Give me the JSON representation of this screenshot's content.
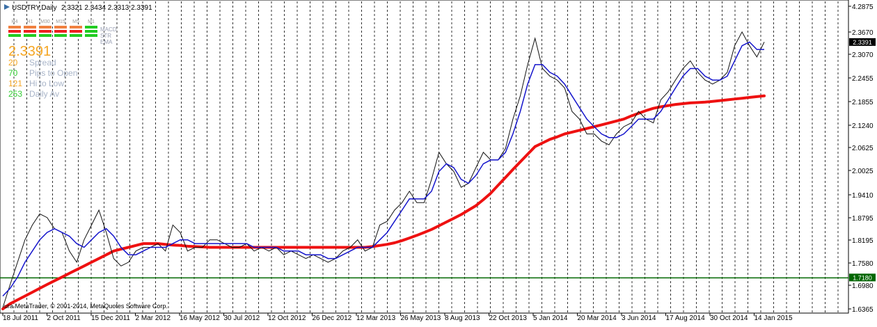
{
  "window": {
    "title": "USDTRY,Daily",
    "ohlc": "2.3321 2.3434 2.3313 2.3391",
    "copyright": "ura MetaTrader, © 2001-2014, MetaQuotes Software Corp."
  },
  "hud": {
    "timeframes": [
      "H4",
      "H1",
      "M30",
      "M15",
      "M5",
      "M1"
    ],
    "indicators": [
      "MACD",
      "STR",
      "EMA"
    ],
    "price": "2.3391",
    "stats": [
      {
        "value": "20",
        "label": "Spread",
        "color": "#f5a623"
      },
      {
        "value": "70",
        "label": "Pips to Open",
        "color": "#33cc33"
      },
      {
        "value": "121",
        "label": "Hi to Low",
        "color": "#f5a623"
      },
      {
        "value": "253",
        "label": "Daily Av",
        "color": "#33cc33"
      }
    ]
  },
  "colors": {
    "ma_long": "#ee1111",
    "ma_blue": "#1515cc",
    "ma_red_thin": "#cc0000",
    "ma_green": "#008800",
    "price_line": "#111111",
    "hline": "#006600",
    "bid_label": "#000000",
    "hline_label": "#006600",
    "up_green": "#22cc22",
    "down_red": "#ee2222",
    "mid_orange": "#f08040"
  },
  "chart_data": {
    "type": "line",
    "title": "USDTRY,Daily",
    "ylim": [
      1.6365,
      4.2875
    ],
    "y_ticks": [
      "4.2875",
      "2.3670",
      "2.3070",
      "2.2455",
      "2.1855",
      "2.1240",
      "2.0625",
      "2.0025",
      "1.9410",
      "1.8795",
      "1.8195",
      "1.7580",
      "1.6980",
      "1.6365"
    ],
    "x_ticks": [
      "18 Jul 2011",
      "2 Oct 2011",
      "15 Dec 2011",
      "2 Mar 2012",
      "16 May 2012",
      "30 Jul 2012",
      "12 Oct 2012",
      "26 Dec 2012",
      "12 Mar 2013",
      "26 May 2013",
      "8 Aug 2013",
      "22 Oct 2013",
      "5 Jan 2014",
      "20 Mar 2014",
      "3 Jun 2014",
      "17 Aug 2014",
      "30 Oct 2014",
      "14 Jan 2015"
    ],
    "current_price": {
      "value": 2.3391,
      "label": "2.3391"
    },
    "hline": {
      "value": 1.718,
      "label": "1.7180"
    },
    "series": [
      {
        "key": "price",
        "values": [
          1.64,
          1.7,
          1.76,
          1.82,
          1.86,
          1.89,
          1.88,
          1.85,
          1.84,
          1.79,
          1.76,
          1.82,
          1.86,
          1.9,
          1.84,
          1.77,
          1.75,
          1.76,
          1.79,
          1.8,
          1.8,
          1.81,
          1.79,
          1.86,
          1.84,
          1.79,
          1.8,
          1.8,
          1.82,
          1.82,
          1.81,
          1.8,
          1.8,
          1.81,
          1.79,
          1.8,
          1.79,
          1.8,
          1.78,
          1.79,
          1.78,
          1.77,
          1.78,
          1.77,
          1.76,
          1.77,
          1.79,
          1.8,
          1.82,
          1.79,
          1.8,
          1.86,
          1.87,
          1.9,
          1.92,
          1.95,
          1.92,
          1.92,
          1.98,
          2.05,
          2.02,
          2.0,
          1.96,
          1.97,
          2.01,
          2.05,
          2.03,
          2.03,
          2.06,
          2.14,
          2.2,
          2.28,
          2.35,
          2.27,
          2.25,
          2.24,
          2.22,
          2.16,
          2.14,
          2.1,
          2.1,
          2.08,
          2.07,
          2.1,
          2.12,
          2.13,
          2.16,
          2.14,
          2.13,
          2.19,
          2.21,
          2.24,
          2.27,
          2.29,
          2.26,
          2.24,
          2.23,
          2.24,
          2.26,
          2.33,
          2.37,
          2.33,
          2.3,
          2.34
        ]
      },
      {
        "key": "ma_long",
        "values": [
          1.6365,
          1.65,
          1.66,
          1.67,
          1.68,
          1.69,
          1.7,
          1.71,
          1.72,
          1.73,
          1.74,
          1.75,
          1.76,
          1.77,
          1.78,
          1.79,
          1.795,
          1.8,
          1.805,
          1.81,
          1.81,
          1.81,
          1.808,
          1.806,
          1.805,
          1.803,
          1.802,
          1.801,
          1.8,
          1.8,
          1.8,
          1.8,
          1.8,
          1.8,
          1.8,
          1.8,
          1.8,
          1.8,
          1.8,
          1.8,
          1.8,
          1.8,
          1.8,
          1.8,
          1.8,
          1.8,
          1.8,
          1.8,
          1.8,
          1.8,
          1.802,
          1.805,
          1.808,
          1.812,
          1.818,
          1.825,
          1.832,
          1.84,
          1.848,
          1.858,
          1.868,
          1.878,
          1.888,
          1.9,
          1.912,
          1.928,
          1.945,
          1.965,
          1.985,
          2.005,
          2.025,
          2.045,
          2.065,
          2.075,
          2.085,
          2.092,
          2.1,
          2.105,
          2.11,
          2.115,
          2.12,
          2.125,
          2.13,
          2.135,
          2.14,
          2.148,
          2.155,
          2.162,
          2.168,
          2.172,
          2.175,
          2.178,
          2.18,
          2.182,
          2.183,
          2.184,
          2.186,
          2.188,
          2.19,
          2.192,
          2.194,
          2.196,
          2.198,
          2.2
        ]
      },
      {
        "key": "ma_blue",
        "values": [
          1.67,
          1.69,
          1.72,
          1.76,
          1.79,
          1.82,
          1.84,
          1.85,
          1.84,
          1.83,
          1.81,
          1.8,
          1.82,
          1.84,
          1.85,
          1.83,
          1.8,
          1.78,
          1.78,
          1.79,
          1.8,
          1.8,
          1.8,
          1.81,
          1.82,
          1.82,
          1.81,
          1.81,
          1.81,
          1.81,
          1.81,
          1.81,
          1.81,
          1.81,
          1.8,
          1.8,
          1.8,
          1.8,
          1.79,
          1.79,
          1.79,
          1.78,
          1.78,
          1.78,
          1.77,
          1.77,
          1.78,
          1.79,
          1.8,
          1.8,
          1.8,
          1.82,
          1.84,
          1.87,
          1.9,
          1.93,
          1.93,
          1.93,
          1.95,
          2.0,
          2.02,
          2.01,
          1.98,
          1.97,
          1.99,
          2.02,
          2.03,
          2.03,
          2.05,
          2.1,
          2.16,
          2.23,
          2.28,
          2.28,
          2.26,
          2.25,
          2.23,
          2.2,
          2.17,
          2.14,
          2.12,
          2.1,
          2.09,
          2.09,
          2.1,
          2.12,
          2.14,
          2.14,
          2.14,
          2.16,
          2.19,
          2.22,
          2.25,
          2.27,
          2.27,
          2.25,
          2.24,
          2.24,
          2.25,
          2.29,
          2.33,
          2.34,
          2.32,
          2.32
        ]
      }
    ]
  }
}
